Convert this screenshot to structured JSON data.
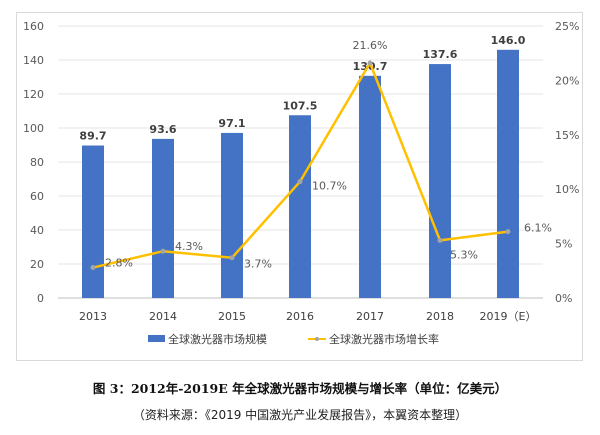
{
  "chart_data": {
    "type": "bar+line",
    "categories": [
      "2013",
      "2014",
      "2015",
      "2016",
      "2017",
      "2018",
      "2019（E）"
    ],
    "series": [
      {
        "name": "全球激光器市场规模",
        "type": "bar",
        "axis": "left",
        "values": [
          89.7,
          93.6,
          97.1,
          107.5,
          130.7,
          137.6,
          146.0
        ],
        "labels": [
          "89.7",
          "93.6",
          "97.1",
          "107.5",
          "130.7",
          "137.6",
          "146.0"
        ],
        "color": "#4472C4"
      },
      {
        "name": "全球激光器市场增长率",
        "type": "line",
        "axis": "right",
        "values": [
          2.8,
          4.3,
          3.7,
          10.7,
          21.6,
          5.3,
          6.1
        ],
        "labels": [
          "2.8%",
          "4.3%",
          "3.7%",
          "10.7%",
          "21.6%",
          "5.3%",
          "6.1%"
        ],
        "color": "#FFC000"
      }
    ],
    "left_axis": {
      "range": [
        0,
        160
      ],
      "ticks": [
        "0",
        "20",
        "40",
        "60",
        "80",
        "100",
        "120",
        "140",
        "160"
      ]
    },
    "right_axis": {
      "range": [
        0,
        25
      ],
      "ticks": [
        "0%",
        "5%",
        "10%",
        "15%",
        "20%",
        "25%"
      ]
    },
    "grid": true,
    "legend": "bottom",
    "title": "图 3：2012年-2019E 年全球激光器市场规模与增长率（单位：亿美元）",
    "source": "（资料来源：《2019 中国激光产业发展报告》，本翼资本整理）"
  }
}
